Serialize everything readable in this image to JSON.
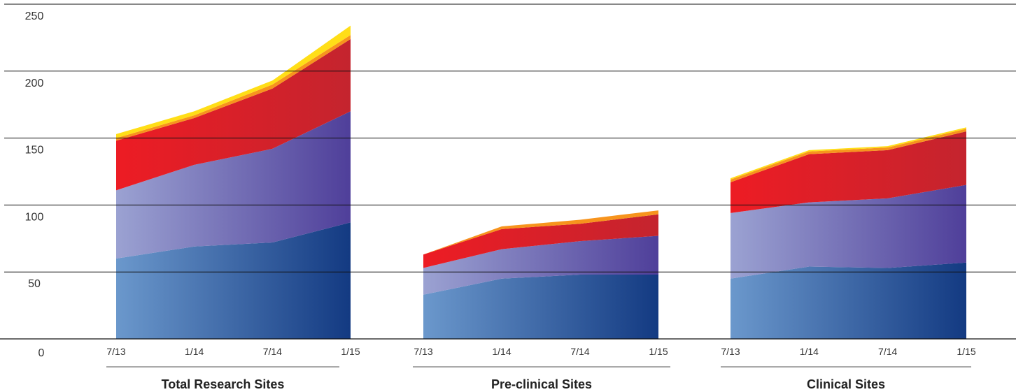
{
  "chart_data": {
    "type": "area",
    "stacked": true,
    "ylim": [
      0,
      250
    ],
    "yticks": [
      0,
      50,
      100,
      150,
      200,
      250
    ],
    "grid": true,
    "legend": "none",
    "colors": {
      "blue_dark": "#133a82",
      "blue_light": "#6b98cc",
      "purple_dark": "#4f3f9a",
      "purple_light": "#9ba2d2",
      "red_light": "#ed1c24",
      "red_dark": "#c4242e",
      "orange": "#f7941d",
      "yellow": "#ffde17"
    },
    "groups": [
      {
        "label": "Total Research Sites",
        "x": [
          "7/13",
          "1/14",
          "7/14",
          "1/15"
        ],
        "series": [
          {
            "values": [
              60,
              69,
              72,
              87
            ]
          },
          {
            "values": [
              51,
              61,
              70,
              83
            ]
          },
          {
            "values": [
              37,
              35,
              45,
              54
            ]
          },
          {
            "values": [
              2,
              2,
              3,
              3
            ]
          },
          {
            "values": [
              3,
              3,
              3,
              7
            ]
          }
        ]
      },
      {
        "label": "Pre-clinical Sites",
        "x": [
          "7/13",
          "1/14",
          "7/14",
          "1/15"
        ],
        "series": [
          {
            "values": [
              33,
              45,
              48,
              48
            ]
          },
          {
            "values": [
              20,
              22,
              25,
              29
            ]
          },
          {
            "values": [
              10,
              15,
              13,
              16
            ]
          },
          {
            "values": [
              0,
              2,
              3,
              3
            ]
          },
          {
            "values": [
              0,
              0,
              0,
              0
            ]
          }
        ]
      },
      {
        "label": "Clinical Sites",
        "x": [
          "7/13",
          "1/14",
          "7/14",
          "1/15"
        ],
        "series": [
          {
            "values": [
              45,
              54,
              53,
              57
            ]
          },
          {
            "values": [
              49,
              48,
              52,
              58
            ]
          },
          {
            "values": [
              23,
              36,
              36,
              40
            ]
          },
          {
            "values": [
              2,
              2,
              2,
              2
            ]
          },
          {
            "values": [
              1,
              1,
              1,
              1
            ]
          }
        ]
      }
    ]
  }
}
